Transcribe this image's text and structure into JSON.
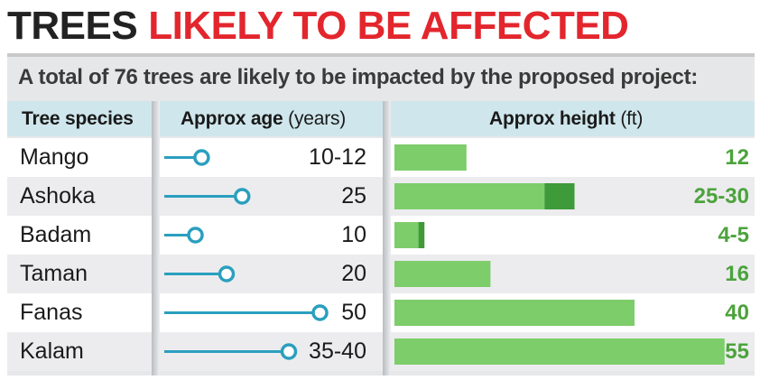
{
  "headline": {
    "part1": "TREES",
    "part2": "LIKELY TO BE AFFECTED"
  },
  "subtitle": "A total of 76 trees are likely to be impacted by the proposed project:",
  "columns": {
    "species": "Tree species",
    "age_bold": "Approx age",
    "age_unit": " (years)",
    "height_bold": "Approx height",
    "height_unit": " (ft)"
  },
  "colors": {
    "headline_dark": "#222222",
    "headline_red": "#e3262d",
    "age_marker": "#2a9fbf",
    "height_bar": "#7dcd6b",
    "height_bar_range": "#3f9a3a",
    "height_label": "#4ca33c",
    "header_bg": "#cfe6ec"
  },
  "chart_data": {
    "type": "table",
    "title": "TREES LIKELY TO BE AFFECTED",
    "subtitle": "A total of 76 trees are likely to be impacted by the proposed project:",
    "rows": [
      {
        "species": "Mango",
        "age_label": "10-12",
        "age": [
          10,
          12
        ],
        "height_label": "12",
        "height": [
          12,
          12
        ]
      },
      {
        "species": "Ashoka",
        "age_label": "25",
        "age": [
          25,
          25
        ],
        "height_label": "25-30",
        "height": [
          25,
          30
        ]
      },
      {
        "species": "Badam",
        "age_label": "10",
        "age": [
          10,
          10
        ],
        "height_label": "4-5",
        "height": [
          4,
          5
        ]
      },
      {
        "species": "Taman",
        "age_label": "20",
        "age": [
          20,
          20
        ],
        "height_label": "16",
        "height": [
          16,
          16
        ]
      },
      {
        "species": "Fanas",
        "age_label": "50",
        "age": [
          50,
          50
        ],
        "height_label": "40",
        "height": [
          40,
          40
        ]
      },
      {
        "species": "Kalam",
        "age_label": "35-40",
        "age": [
          35,
          40
        ],
        "height_label": "55",
        "height": [
          55,
          55
        ]
      }
    ]
  }
}
